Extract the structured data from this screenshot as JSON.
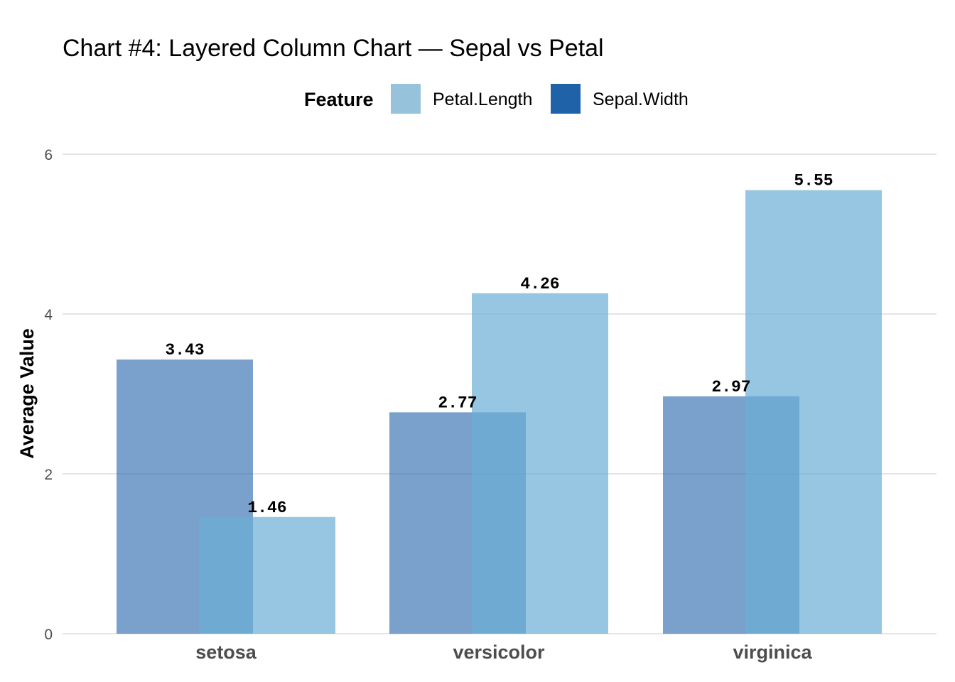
{
  "chart_data": {
    "type": "bar",
    "title": "Chart #4: Layered Column Chart — Sepal vs Petal",
    "ylabel": "Average Value",
    "xlabel": "",
    "categories": [
      "setosa",
      "versicolor",
      "virginica"
    ],
    "legend": {
      "title": "Feature",
      "placement": "top",
      "entries": [
        "Petal.Length",
        "Sepal.Width"
      ]
    },
    "series": [
      {
        "name": "Sepal.Width",
        "values": [
          3.43,
          2.77,
          2.97
        ],
        "labels": [
          "3.43",
          "2.77",
          "2.97"
        ],
        "color": "#1f62a8",
        "opacity": 0.6,
        "layer": "back"
      },
      {
        "name": "Petal.Length",
        "values": [
          1.46,
          4.26,
          5.55
        ],
        "labels": [
          "1.46",
          "4.26",
          "5.55"
        ],
        "color": "#6baed6",
        "opacity": 0.7,
        "layer": "front"
      }
    ],
    "ylim": [
      0,
      6
    ],
    "yticks": [
      "0",
      "2",
      "4",
      "6"
    ],
    "grid": true,
    "colors": {
      "Sepal.Width": "#1f62a8",
      "Petal.Length": "#96c2db"
    }
  }
}
